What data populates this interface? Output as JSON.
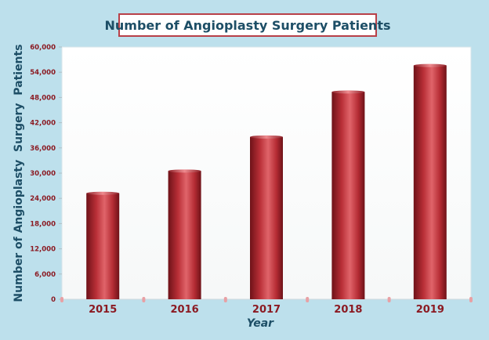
{
  "chart_data": {
    "type": "bar",
    "title": "Number of Angioplasty Surgery Patients",
    "xlabel": "Year",
    "ylabel": "Number of Angioplasty  Surgery  Patients",
    "categories": [
      "2015",
      "2016",
      "2017",
      "2018",
      "2019"
    ],
    "values": [
      25200,
      30500,
      38600,
      49300,
      55600
    ],
    "ylim": [
      0,
      60000
    ],
    "yticks": [
      0,
      6000,
      12000,
      18000,
      24000,
      30000,
      36000,
      42000,
      48000,
      54000,
      60000
    ],
    "ytick_labels": [
      "0",
      "6,000",
      "12,000",
      "18,000",
      "24,000",
      "30,000",
      "36,000",
      "42,000",
      "48,000",
      "54,000",
      "60,000"
    ],
    "grid": false,
    "legend": "none",
    "colors": {
      "bar": "#c0373f",
      "bar_dark": "#6e1218",
      "bar_light": "#e36a70",
      "background": "#bde0ec",
      "plot_background": "#ffffff",
      "tick_label": "#8b1a22",
      "axis_label": "#1d4e66",
      "title_border": "#b84048"
    }
  }
}
